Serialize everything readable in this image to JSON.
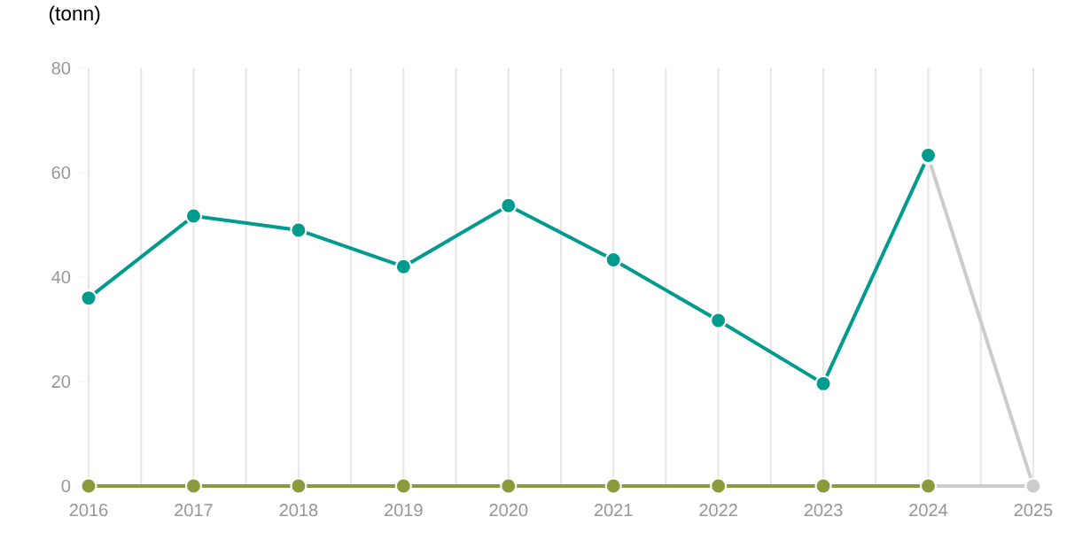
{
  "chart_data": {
    "type": "line",
    "ylabel": "(tonn)",
    "xlim": [
      2016,
      2025
    ],
    "ylim": [
      0,
      80
    ],
    "xticks": [
      2016,
      {
        "value": 2016.5,
        "label": null
      },
      2017,
      {
        "value": 2017.5,
        "label": null
      },
      2018,
      {
        "value": 2018.5,
        "label": null
      },
      2019,
      {
        "value": 2019.5,
        "label": null
      },
      2020,
      {
        "value": 2020.5,
        "label": null
      },
      2021,
      {
        "value": 2021.5,
        "label": null
      },
      2022,
      {
        "value": 2022.5,
        "label": null
      },
      2023,
      {
        "value": 2023.5,
        "label": null
      },
      2024,
      {
        "value": 2024.5,
        "label": null
      },
      2025
    ],
    "yticks": [
      0,
      20,
      40,
      60,
      80
    ],
    "grid": "x",
    "marker": "circle",
    "line_style": "solid",
    "series": [
      {
        "color": "#cccccc",
        "x": [
          2024,
          2025
        ],
        "values": [
          63,
          0
        ]
      },
      {
        "color": "#cccccc",
        "x": [
          2024,
          2025
        ],
        "values": [
          0,
          0
        ]
      },
      {
        "color": "#8a9a3c",
        "x": [
          2016,
          2017,
          2018,
          2019,
          2020,
          2021,
          2022,
          2023,
          2024
        ],
        "values": [
          0,
          0,
          0,
          0,
          0,
          0,
          0,
          0,
          0
        ]
      },
      {
        "color": "#009a8e",
        "x": [
          2016,
          2017,
          2018,
          2019,
          2020,
          2021,
          2022,
          2023,
          2024
        ],
        "values": [
          36,
          51.7,
          49,
          42,
          53.7,
          43.3,
          31.7,
          19.6,
          63.3
        ]
      }
    ]
  }
}
